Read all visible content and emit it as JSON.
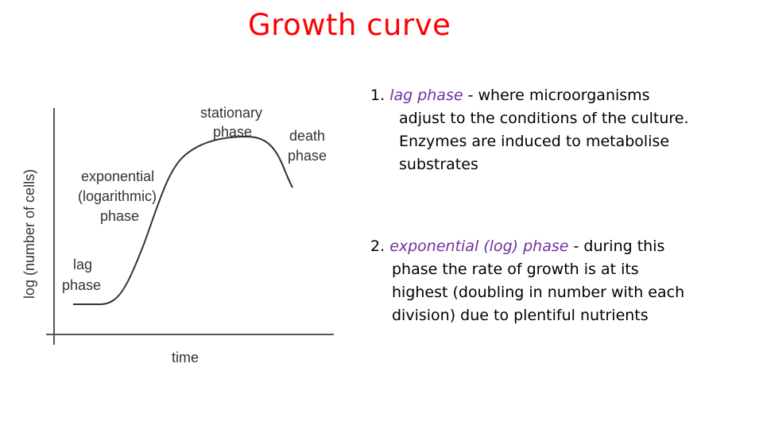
{
  "title": "Growth curve",
  "diagram": {
    "y_axis_label": "log (number of cells)",
    "x_axis_label": "time",
    "phase_labels": {
      "lag": [
        "lag",
        "phase"
      ],
      "exponential": [
        "exponential",
        "(logarithmic)",
        "phase"
      ],
      "stationary": [
        "stationary",
        "phase"
      ],
      "death": [
        "death",
        "phase"
      ]
    },
    "colors": {
      "curve": "#333333",
      "axis": "#555555",
      "text": "#333333"
    }
  },
  "notes": [
    {
      "number": "1.",
      "term": "lag phase",
      "lines": [
        "- where microorganisms",
        "adjust to the conditions of the culture.",
        "Enzymes are induced to metabolise",
        "substrates"
      ]
    },
    {
      "number": "2.",
      "term": "exponential (log) phase",
      "lines": [
        "- during this",
        "phase the rate of growth is at its",
        "highest (doubling in number with each",
        "division) due to plentiful nutrients"
      ]
    }
  ],
  "colors": {
    "title": "#ff0000",
    "term": "#7030a0",
    "body_text": "#000000"
  }
}
